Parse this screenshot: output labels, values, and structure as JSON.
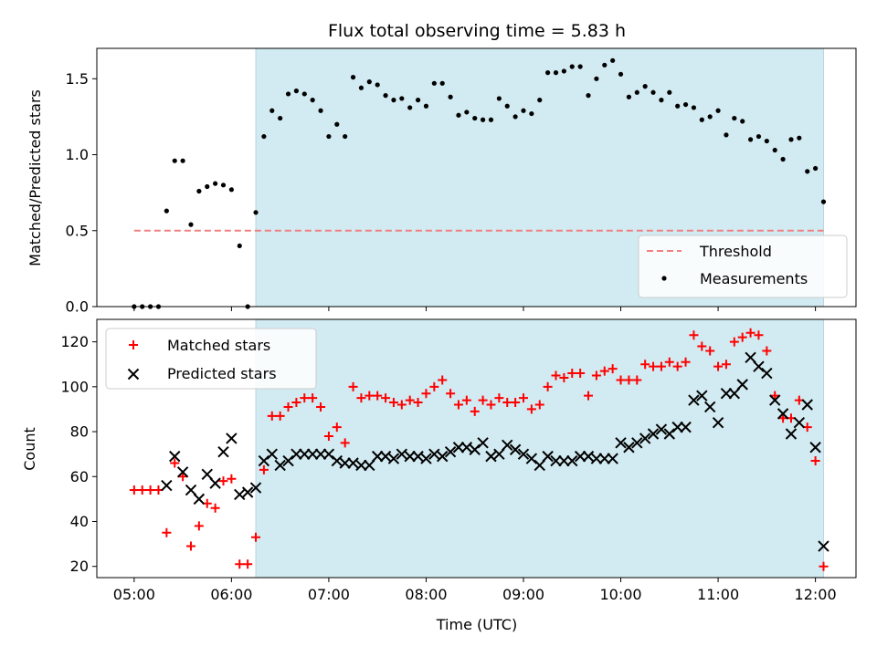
{
  "chart_data": [
    {
      "type": "scatter",
      "title": "Flux total observing time = 5.83 h",
      "ylabel": "Matched/Predicted stars",
      "xlabel": "",
      "ylim": [
        0,
        1.7
      ],
      "yticks": [
        "0.0",
        "0.5",
        "1.0",
        "1.5"
      ],
      "ytick_values": [
        0,
        0.5,
        1.0,
        1.5
      ],
      "shaded_range": [
        "06:15",
        "12:05"
      ],
      "shade_color": "#d2eaf1",
      "threshold": {
        "name": "Threshold",
        "value": 0.5,
        "x_start": "05:00",
        "x_end": "12:05",
        "color": "#f08080"
      },
      "legend_placement": "lower-right",
      "series": [
        {
          "name": "Measurements",
          "color": "#000000",
          "x": [
            "05:00",
            "05:05",
            "05:10",
            "05:15",
            "05:20",
            "05:25",
            "05:30",
            "05:35",
            "05:40",
            "05:45",
            "05:50",
            "05:55",
            "06:00",
            "06:05",
            "06:10",
            "06:15",
            "06:20",
            "06:25",
            "06:30",
            "06:35",
            "06:40",
            "06:45",
            "06:50",
            "06:55",
            "07:00",
            "07:05",
            "07:10",
            "07:15",
            "07:20",
            "07:25",
            "07:30",
            "07:35",
            "07:40",
            "07:45",
            "07:50",
            "07:55",
            "08:00",
            "08:05",
            "08:10",
            "08:15",
            "08:20",
            "08:25",
            "08:30",
            "08:35",
            "08:40",
            "08:45",
            "08:50",
            "08:55",
            "09:00",
            "09:05",
            "09:10",
            "09:15",
            "09:20",
            "09:25",
            "09:30",
            "09:35",
            "09:40",
            "09:45",
            "09:50",
            "09:55",
            "10:00",
            "10:05",
            "10:10",
            "10:15",
            "10:20",
            "10:25",
            "10:30",
            "10:35",
            "10:40",
            "10:45",
            "10:50",
            "10:55",
            "11:00",
            "11:05",
            "11:10",
            "11:15",
            "11:20",
            "11:25",
            "11:30",
            "11:35",
            "11:40",
            "11:45",
            "11:50",
            "11:55",
            "12:00",
            "12:05"
          ],
          "y": [
            0.0,
            0.0,
            0.0,
            0.0,
            0.63,
            0.96,
            0.96,
            0.54,
            0.76,
            0.79,
            0.81,
            0.8,
            0.77,
            0.4,
            0.0,
            0.62,
            1.12,
            1.29,
            1.24,
            1.4,
            1.42,
            1.4,
            1.36,
            1.29,
            1.12,
            1.2,
            1.12,
            1.51,
            1.44,
            1.48,
            1.46,
            1.39,
            1.36,
            1.37,
            1.31,
            1.36,
            1.32,
            1.47,
            1.47,
            1.38,
            1.26,
            1.28,
            1.24,
            1.23,
            1.23,
            1.37,
            1.32,
            1.25,
            1.29,
            1.27,
            1.36,
            1.54,
            1.54,
            1.55,
            1.58,
            1.58,
            1.39,
            1.5,
            1.59,
            1.62,
            1.53,
            1.38,
            1.41,
            1.45,
            1.41,
            1.36,
            1.41,
            1.32,
            1.33,
            1.31,
            1.23,
            1.25,
            1.29,
            1.13,
            1.24,
            1.22,
            1.1,
            1.12,
            1.09,
            1.03,
            0.97,
            1.1,
            1.11,
            0.89,
            0.91,
            0.69
          ]
        }
      ]
    },
    {
      "type": "scatter",
      "title": "",
      "xlabel": "Time (UTC)",
      "ylabel": "Count",
      "ylim": [
        15,
        130
      ],
      "yticks": [
        "20",
        "40",
        "60",
        "80",
        "100",
        "120"
      ],
      "ytick_values": [
        20,
        40,
        60,
        80,
        100,
        120
      ],
      "xlim": [
        "04:37",
        "12:25"
      ],
      "xticks": [
        "05:00",
        "06:00",
        "07:00",
        "08:00",
        "09:00",
        "10:00",
        "11:00",
        "12:00"
      ],
      "shaded_range": [
        "06:15",
        "12:05"
      ],
      "shade_color": "#d2eaf1",
      "legend_placement": "upper-left",
      "series": [
        {
          "name": "Matched stars",
          "color": "#ff0000",
          "marker": "plus",
          "x": [
            "05:00",
            "05:05",
            "05:10",
            "05:15",
            "05:20",
            "05:25",
            "05:30",
            "05:35",
            "05:40",
            "05:45",
            "05:50",
            "05:55",
            "06:00",
            "06:05",
            "06:10",
            "06:15",
            "06:20",
            "06:25",
            "06:30",
            "06:35",
            "06:40",
            "06:45",
            "06:50",
            "06:55",
            "07:00",
            "07:05",
            "07:10",
            "07:15",
            "07:20",
            "07:25",
            "07:30",
            "07:35",
            "07:40",
            "07:45",
            "07:50",
            "07:55",
            "08:00",
            "08:05",
            "08:10",
            "08:15",
            "08:20",
            "08:25",
            "08:30",
            "08:35",
            "08:40",
            "08:45",
            "08:50",
            "08:55",
            "09:00",
            "09:05",
            "09:10",
            "09:15",
            "09:20",
            "09:25",
            "09:30",
            "09:35",
            "09:40",
            "09:45",
            "09:50",
            "09:55",
            "10:00",
            "10:05",
            "10:10",
            "10:15",
            "10:20",
            "10:25",
            "10:30",
            "10:35",
            "10:40",
            "10:45",
            "10:50",
            "10:55",
            "11:00",
            "11:05",
            "11:10",
            "11:15",
            "11:20",
            "11:25",
            "11:30",
            "11:35",
            "11:40",
            "11:45",
            "11:50",
            "11:55",
            "12:00",
            "12:05"
          ],
          "y": [
            54,
            54,
            54,
            54,
            35,
            66,
            60,
            29,
            38,
            48,
            46,
            58,
            59,
            21,
            21,
            33,
            63,
            87,
            87,
            91,
            93,
            95,
            95,
            91,
            78,
            82,
            75,
            100,
            95,
            96,
            96,
            95,
            93,
            92,
            94,
            93,
            97,
            100,
            103,
            97,
            92,
            94,
            89,
            94,
            92,
            95,
            93,
            93,
            95,
            90,
            92,
            100,
            105,
            104,
            106,
            106,
            96,
            105,
            107,
            108,
            103,
            103,
            103,
            110,
            109,
            109,
            111,
            109,
            111,
            123,
            118,
            116,
            109,
            110,
            120,
            122,
            124,
            123,
            116,
            96,
            86,
            86,
            94,
            82,
            67,
            20
          ]
        },
        {
          "name": "Predicted stars",
          "color": "#000000",
          "marker": "x",
          "x": [
            "05:20",
            "05:25",
            "05:30",
            "05:35",
            "05:40",
            "05:45",
            "05:50",
            "05:55",
            "06:00",
            "06:05",
            "06:10",
            "06:15",
            "06:20",
            "06:25",
            "06:30",
            "06:35",
            "06:40",
            "06:45",
            "06:50",
            "06:55",
            "07:00",
            "07:05",
            "07:10",
            "07:15",
            "07:20",
            "07:25",
            "07:30",
            "07:35",
            "07:40",
            "07:45",
            "07:50",
            "07:55",
            "08:00",
            "08:05",
            "08:10",
            "08:15",
            "08:20",
            "08:25",
            "08:30",
            "08:35",
            "08:40",
            "08:45",
            "08:50",
            "08:55",
            "09:00",
            "09:05",
            "09:10",
            "09:15",
            "09:20",
            "09:25",
            "09:30",
            "09:35",
            "09:40",
            "09:45",
            "09:50",
            "09:55",
            "10:00",
            "10:05",
            "10:10",
            "10:15",
            "10:20",
            "10:25",
            "10:30",
            "10:35",
            "10:40",
            "10:45",
            "10:50",
            "10:55",
            "11:00",
            "11:05",
            "11:10",
            "11:15",
            "11:20",
            "11:25",
            "11:30",
            "11:35",
            "11:40",
            "11:45",
            "11:50",
            "11:55",
            "12:00",
            "12:05"
          ],
          "y": [
            56,
            69,
            62,
            54,
            50,
            61,
            57,
            71,
            77,
            52,
            53,
            55,
            67,
            70,
            65,
            67,
            70,
            70,
            70,
            70,
            70,
            67,
            66,
            66,
            65,
            65,
            69,
            69,
            68,
            70,
            69,
            69,
            68,
            70,
            69,
            71,
            73,
            73,
            72,
            75,
            69,
            70,
            74,
            72,
            70,
            68,
            65,
            69,
            67,
            67,
            67,
            69,
            69,
            68,
            68,
            68,
            75,
            73,
            75,
            77,
            79,
            81,
            79,
            82,
            82,
            94,
            96,
            91,
            84,
            97,
            97,
            101,
            113,
            109,
            106,
            94,
            88,
            79,
            84,
            92,
            73,
            29
          ]
        }
      ]
    }
  ]
}
